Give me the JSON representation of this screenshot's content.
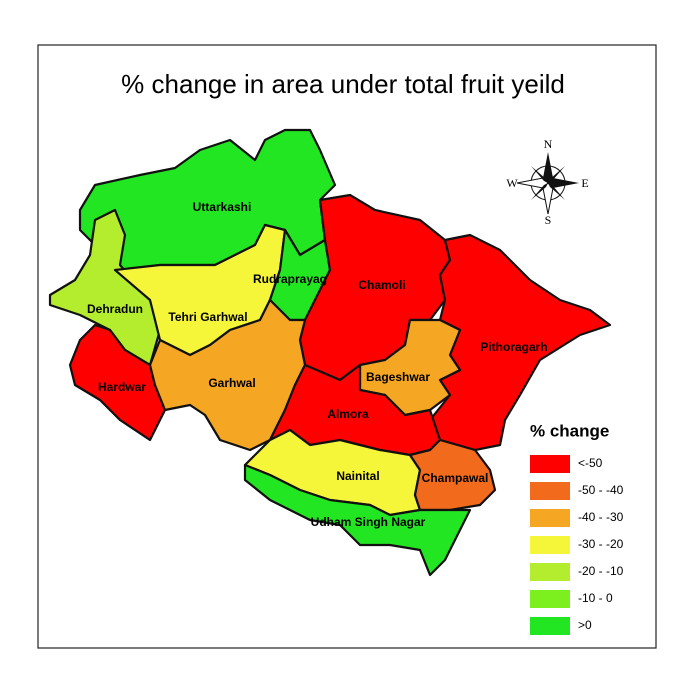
{
  "title": "% change in area under total fruit yeild",
  "districts": [
    {
      "label": "Uttarkashi",
      "color": "#22e622"
    },
    {
      "label": "Dehradun",
      "color": "#b4ed2e"
    },
    {
      "label": "Tehri Garhwal",
      "color": "#f5f53a"
    },
    {
      "label": "Rudraprayag",
      "color": "#22e622"
    },
    {
      "label": "Chamoli",
      "color": "#ff0000"
    },
    {
      "label": "Pithoragarh",
      "color": "#ff0000"
    },
    {
      "label": "Bageshwar",
      "color": "#f5a623"
    },
    {
      "label": "Hardwar",
      "color": "#ff0000"
    },
    {
      "label": "Garhwal",
      "color": "#f5a623"
    },
    {
      "label": "Almora",
      "color": "#ff0000"
    },
    {
      "label": "Nainital",
      "color": "#f5f53a"
    },
    {
      "label": "Champawal",
      "color": "#f26a1b"
    },
    {
      "label": "Udham Singh Nagar",
      "color": "#22e622"
    }
  ],
  "legend": {
    "title": "% change",
    "items": [
      {
        "label": "<-50",
        "color": "#ff0000"
      },
      {
        "label": "-50 - -40",
        "color": "#f26a1b"
      },
      {
        "label": "-40 - -30",
        "color": "#f5a623"
      },
      {
        "label": "-30 - -20",
        "color": "#f5f53a"
      },
      {
        "label": "-20 - -10",
        "color": "#b4ed2e"
      },
      {
        "label": "-10 - 0",
        "color": "#7cf01e"
      },
      {
        "label": ">0",
        "color": "#22e622"
      }
    ]
  },
  "compass": {
    "n": "N",
    "e": "E",
    "s": "S",
    "w": "W"
  }
}
